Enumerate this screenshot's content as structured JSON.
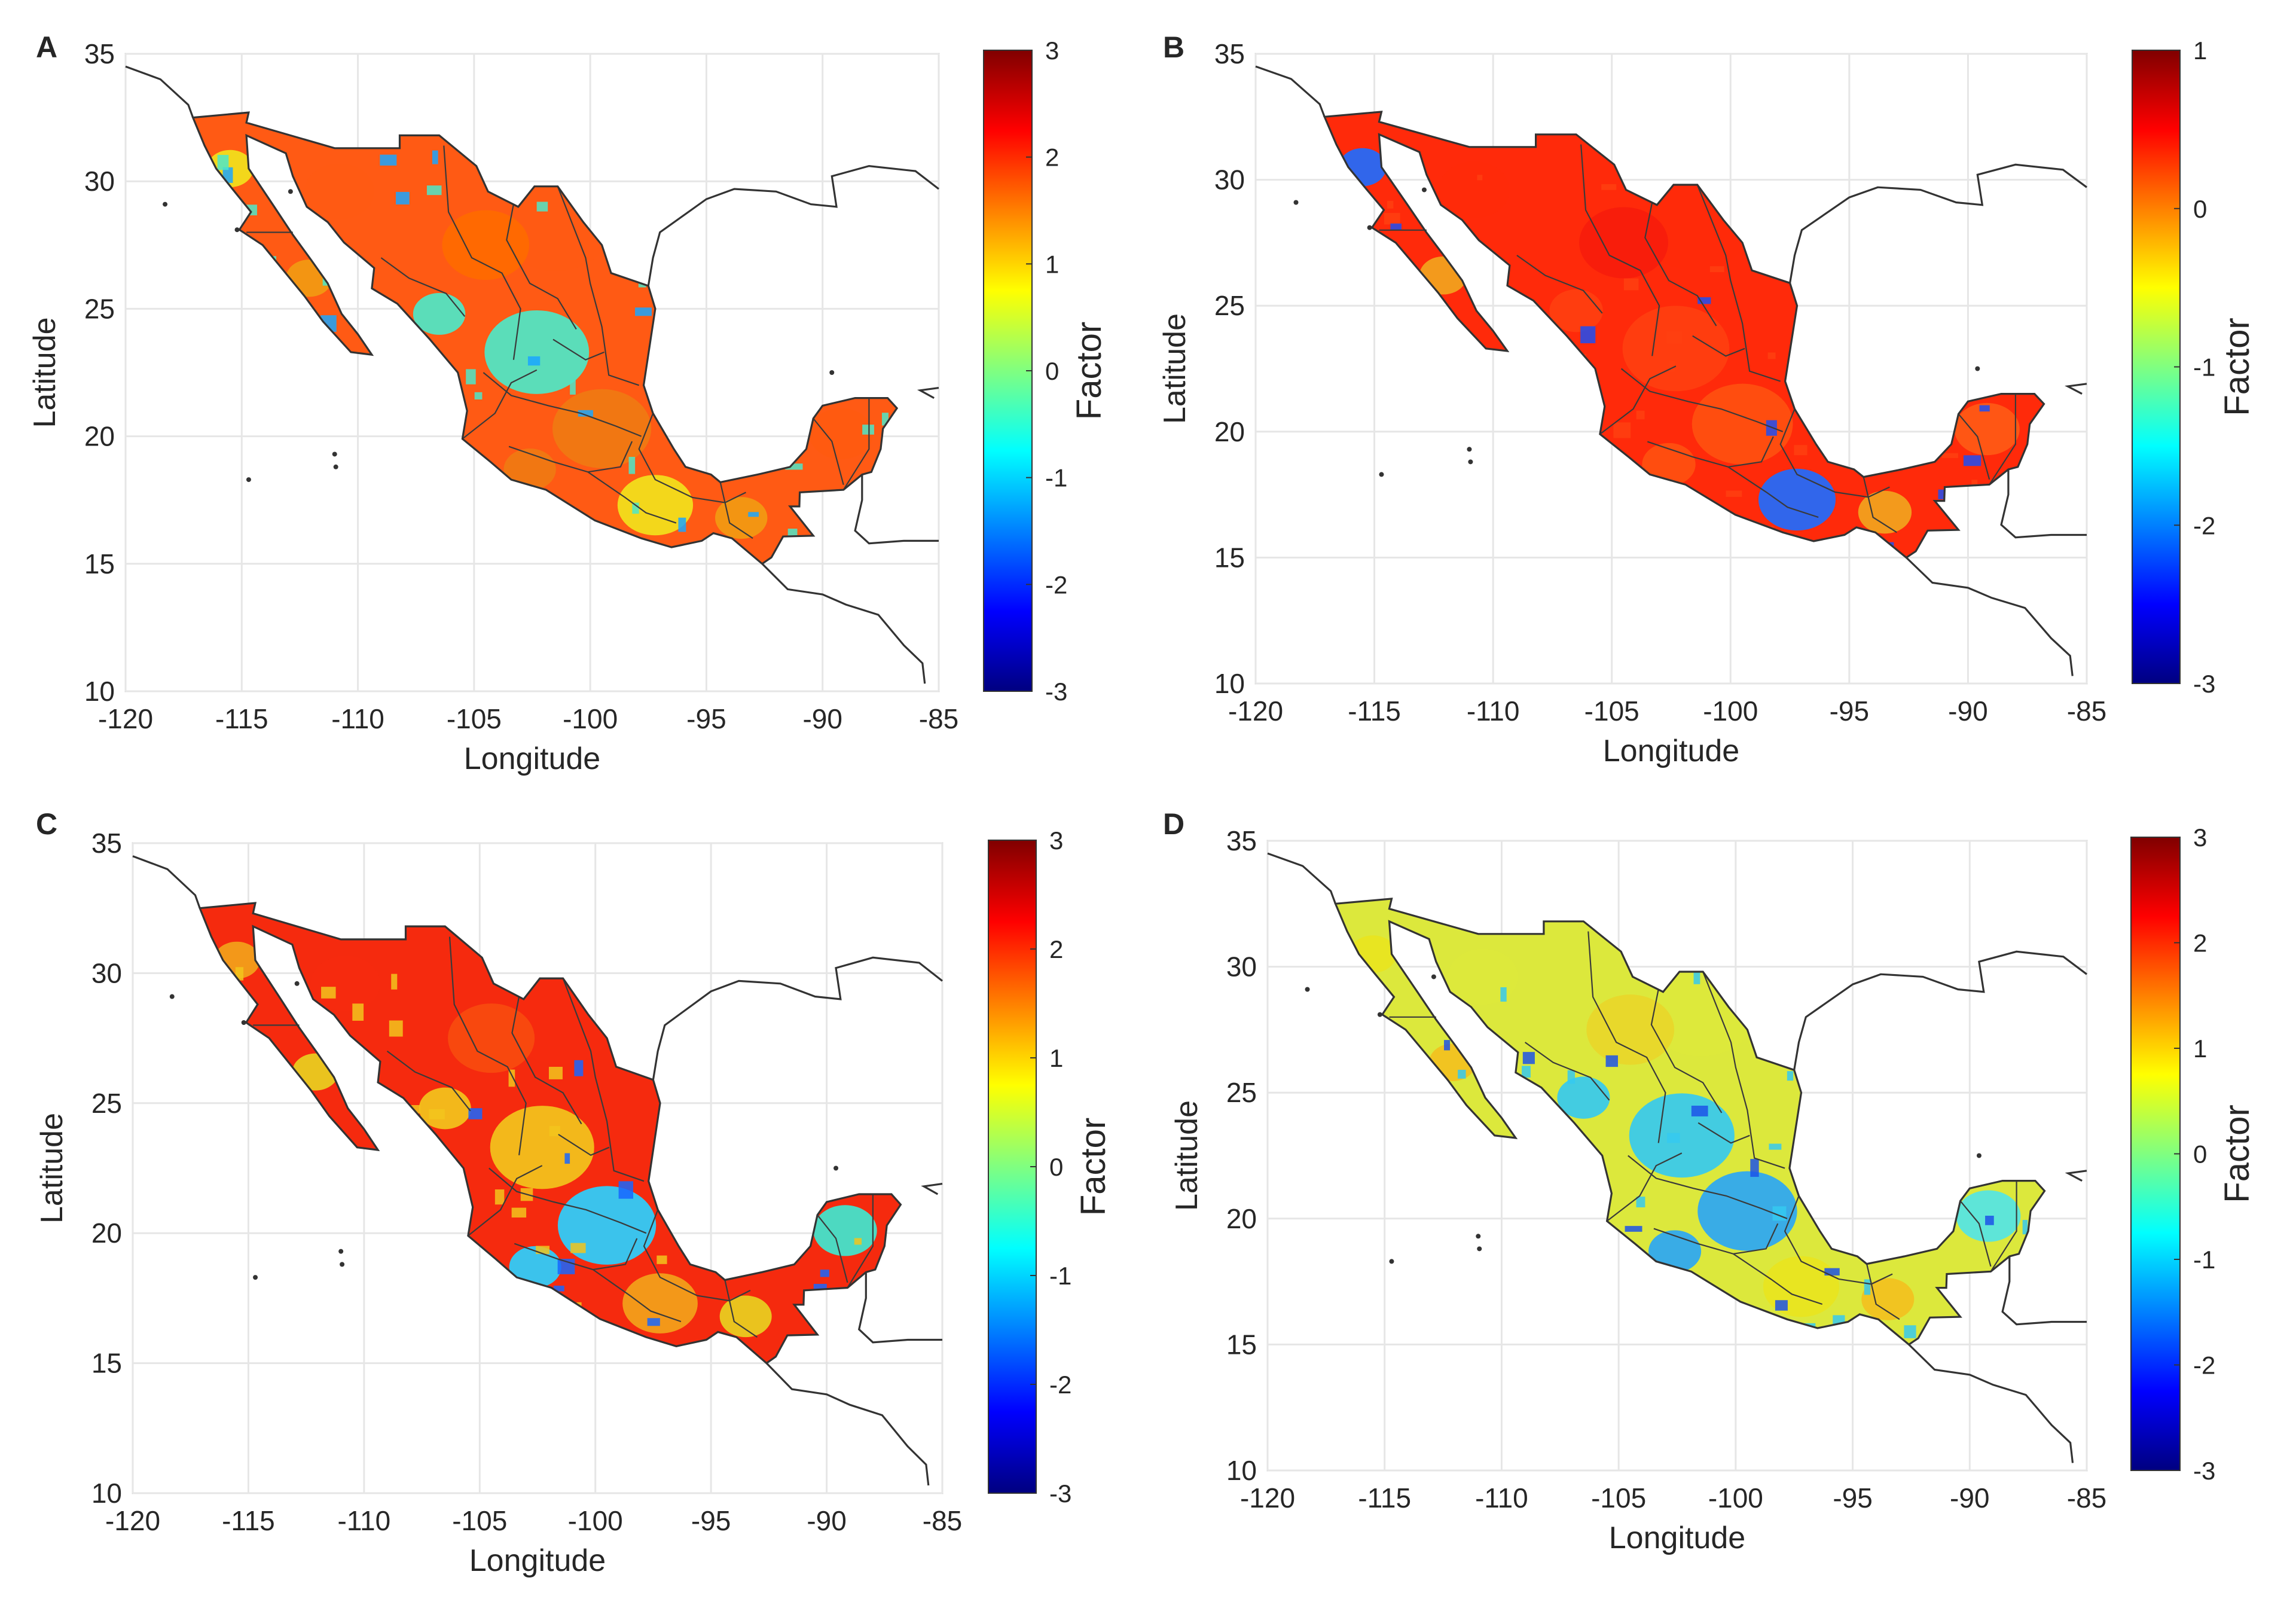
{
  "figure": {
    "colormap": {
      "name": "jet",
      "stops": [
        "#000080",
        "#0000ff",
        "#0080ff",
        "#00ffff",
        "#80ff80",
        "#ffff00",
        "#ff8000",
        "#ff0000",
        "#800000"
      ],
      "ocean": "#ffffff",
      "coast": "#333333",
      "grid": "#e6e6e6"
    },
    "panels": [
      {
        "letter": "A",
        "xlabel": "Longitude",
        "ylabel": "Latitude",
        "xlim": [
          -120,
          -85
        ],
        "ylim": [
          10,
          35
        ],
        "xticks": [
          "-120",
          "-115",
          "-110",
          "-105",
          "-100",
          "-95",
          "-90",
          "-85"
        ],
        "yticks": [
          "10",
          "15",
          "20",
          "25",
          "30",
          "35"
        ],
        "colorbar": {
          "label": "Factor",
          "range": [
            -3,
            3
          ],
          "ticks": [
            "3",
            "2",
            "1",
            "0",
            "-1",
            "-2",
            "-3"
          ]
        },
        "pattern": "high coastal and southeast, low central plateau",
        "fill_bias": 1.4,
        "colors": {
          "nw": "#ff5a14",
          "ne": "#ff6a00",
          "central": "#4de8c8",
          "south": "#f07a12",
          "baja_north": "#f2e21c",
          "baja_south": "#f29a12",
          "yucatan": "#ff5a10",
          "patch": "#1aa6ff"
        }
      },
      {
        "letter": "B",
        "xlabel": "Longitude",
        "ylabel": "Latitude",
        "xlim": [
          -120,
          -85
        ],
        "ylim": [
          10,
          35
        ],
        "xticks": [
          "-120",
          "-115",
          "-110",
          "-105",
          "-100",
          "-95",
          "-90",
          "-85"
        ],
        "yticks": [
          "10",
          "15",
          "20",
          "25",
          "30",
          "35"
        ],
        "colorbar": {
          "label": "Factor",
          "range": [
            -3,
            1
          ],
          "ticks": [
            "1",
            "0",
            "-1",
            "-2",
            "-3"
          ]
        },
        "pattern": "uniformly high with scattered low cells",
        "fill_bias": 0.5,
        "colors": {
          "nw": "#ff2a0a",
          "ne": "#f71c0c",
          "central": "#ff3f10",
          "south": "#ff5010",
          "baja_north": "#1f6bff",
          "baja_south": "#f2a41e",
          "yucatan": "#ff5a16",
          "patch": "#1d4df5"
        }
      },
      {
        "letter": "C",
        "xlabel": "Longitude",
        "ylabel": "Latitude",
        "xlim": [
          -120,
          -85
        ],
        "ylim": [
          10,
          35
        ],
        "xticks": [
          "-120",
          "-115",
          "-110",
          "-105",
          "-100",
          "-95",
          "-90",
          "-85"
        ],
        "yticks": [
          "10",
          "15",
          "20",
          "25",
          "30",
          "35"
        ],
        "colorbar": {
          "label": "Factor",
          "range": [
            -3,
            3
          ],
          "ticks": [
            "3",
            "2",
            "1",
            "0",
            "-1",
            "-2",
            "-3"
          ]
        },
        "pattern": "high in the north decreasing to low in the south",
        "fill_bias": 0.8,
        "colors": {
          "nw": "#f52a0e",
          "ne": "#f74b0e",
          "central": "#f2c41c",
          "south": "#2ad0ff",
          "baja_north": "#f2a21a",
          "baja_south": "#e8d020",
          "yucatan": "#3ee8d0",
          "patch": "#1766ff"
        }
      },
      {
        "letter": "D",
        "xlabel": "Longitude",
        "ylabel": "Latitude",
        "xlim": [
          -120,
          -85
        ],
        "ylim": [
          10,
          35
        ],
        "xticks": [
          "-120",
          "-115",
          "-110",
          "-105",
          "-100",
          "-95",
          "-90",
          "-85"
        ],
        "yticks": [
          "10",
          "15",
          "20",
          "25",
          "30",
          "35"
        ],
        "colorbar": {
          "label": "Factor",
          "range": [
            -3,
            3
          ],
          "ticks": [
            "3",
            "2",
            "1",
            "0",
            "-1",
            "-2",
            "-3"
          ]
        },
        "pattern": "mixed moderate values, low in the south and Sierra Madre",
        "fill_bias": 0.2,
        "colors": {
          "nw": "#dce83c",
          "ne": "#e8d62a",
          "central": "#35c9f0",
          "south": "#2aa6f5",
          "baja_north": "#e8e420",
          "baja_south": "#f2c020",
          "yucatan": "#52e4e6",
          "patch": "#1c52e8"
        }
      }
    ]
  }
}
